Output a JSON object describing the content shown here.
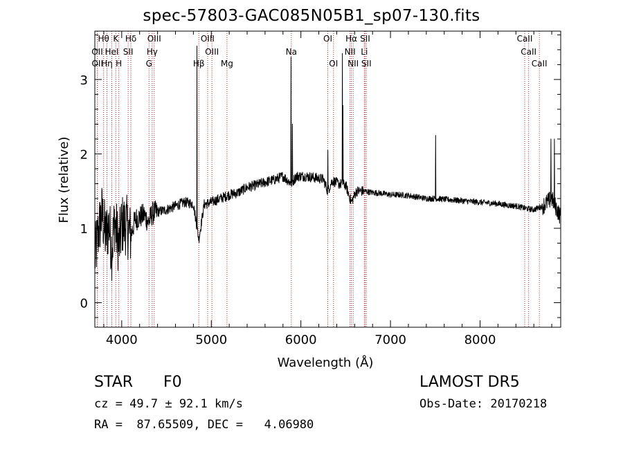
{
  "chart_data": {
    "type": "line",
    "title": "spec-57803-GAC085N05B1_sp07-130.fits",
    "xlabel": "Wavelength (Å)",
    "ylabel": "Flux (relative)",
    "xlim": [
      3700,
      8900
    ],
    "ylim": [
      -0.33,
      3.65
    ],
    "xticks": [
      4000,
      5000,
      6000,
      7000,
      8000
    ],
    "yticks": [
      0,
      1,
      2,
      3
    ],
    "grid": false,
    "line_color": "#000000",
    "marker_color": "#b22222",
    "spectrum_anchors": [
      [
        3700,
        0.6
      ],
      [
        3740,
        0.95
      ],
      [
        3780,
        1.2
      ],
      [
        3820,
        0.9
      ],
      [
        3860,
        1.05
      ],
      [
        3890,
        0.7
      ],
      [
        3920,
        1.1
      ],
      [
        3950,
        0.9
      ],
      [
        3970,
        0.75
      ],
      [
        4000,
        1.05
      ],
      [
        4050,
        1.05
      ],
      [
        4101,
        0.9
      ],
      [
        4150,
        1.12
      ],
      [
        4200,
        1.15
      ],
      [
        4250,
        1.18
      ],
      [
        4300,
        1.08
      ],
      [
        4340,
        1.2
      ],
      [
        4400,
        1.22
      ],
      [
        4500,
        1.25
      ],
      [
        4600,
        1.3
      ],
      [
        4700,
        1.35
      ],
      [
        4800,
        1.33
      ],
      [
        4861,
        0.85
      ],
      [
        4920,
        1.32
      ],
      [
        5000,
        1.35
      ],
      [
        5100,
        1.4
      ],
      [
        5200,
        1.45
      ],
      [
        5300,
        1.48
      ],
      [
        5400,
        1.55
      ],
      [
        5500,
        1.58
      ],
      [
        5600,
        1.62
      ],
      [
        5700,
        1.65
      ],
      [
        5800,
        1.7
      ],
      [
        5893,
        1.6
      ],
      [
        5950,
        1.7
      ],
      [
        6050,
        1.7
      ],
      [
        6150,
        1.68
      ],
      [
        6250,
        1.66
      ],
      [
        6300,
        1.5
      ],
      [
        6350,
        1.64
      ],
      [
        6420,
        1.6
      ],
      [
        6500,
        1.58
      ],
      [
        6563,
        1.35
      ],
      [
        6620,
        1.5
      ],
      [
        6700,
        1.5
      ],
      [
        6800,
        1.48
      ],
      [
        6900,
        1.47
      ],
      [
        7000,
        1.45
      ],
      [
        7100,
        1.45
      ],
      [
        7200,
        1.44
      ],
      [
        7300,
        1.42
      ],
      [
        7400,
        1.4
      ],
      [
        7500,
        1.4
      ],
      [
        7600,
        1.39
      ],
      [
        7700,
        1.38
      ],
      [
        7800,
        1.37
      ],
      [
        7900,
        1.36
      ],
      [
        8000,
        1.35
      ],
      [
        8100,
        1.34
      ],
      [
        8200,
        1.33
      ],
      [
        8300,
        1.31
      ],
      [
        8400,
        1.3
      ],
      [
        8500,
        1.27
      ],
      [
        8600,
        1.25
      ],
      [
        8700,
        1.3
      ],
      [
        8800,
        1.4
      ],
      [
        8900,
        1.15
      ]
    ],
    "emission_spikes": [
      {
        "x": 4840,
        "y": 3.45
      },
      {
        "x": 5890,
        "y": 3.3
      },
      {
        "x": 5905,
        "y": 2.4
      },
      {
        "x": 6300,
        "y": 2.05
      },
      {
        "x": 6463,
        "y": 3.35
      },
      {
        "x": 6470,
        "y": 2.65
      },
      {
        "x": 7505,
        "y": 2.25
      },
      {
        "x": 8790,
        "y": 2.2
      },
      {
        "x": 8830,
        "y": 2.2
      }
    ],
    "line_markers": [
      {
        "label": "Hθ",
        "wave": 3798,
        "row": 0
      },
      {
        "label": "K",
        "wave": 3934,
        "row": 0
      },
      {
        "label": "Hδ",
        "wave": 4102,
        "row": 0
      },
      {
        "label": "OIII",
        "wave": 4363,
        "row": 0
      },
      {
        "label": "OIII",
        "wave": 4959,
        "row": 0
      },
      {
        "label": "OI",
        "wave": 6300,
        "row": 0
      },
      {
        "label": "Hα",
        "wave": 6563,
        "row": 0
      },
      {
        "label": "SII",
        "wave": 6717,
        "row": 0
      },
      {
        "label": "CaII",
        "wave": 8498,
        "row": 0
      },
      {
        "label": "OII",
        "wave": 3727,
        "row": 1
      },
      {
        "label": "HeI",
        "wave": 3889,
        "row": 1
      },
      {
        "label": "SII",
        "wave": 4072,
        "row": 1
      },
      {
        "label": "Hγ",
        "wave": 4340,
        "row": 1
      },
      {
        "label": "OIII",
        "wave": 5007,
        "row": 1
      },
      {
        "label": "Na",
        "wave": 5893,
        "row": 1
      },
      {
        "label": "NII",
        "wave": 6548,
        "row": 1
      },
      {
        "label": "Li",
        "wave": 6708,
        "row": 1
      },
      {
        "label": "CaII",
        "wave": 8542,
        "row": 1
      },
      {
        "label": "OII",
        "wave": 3729,
        "row": 2
      },
      {
        "label": "Hη",
        "wave": 3835,
        "row": 2
      },
      {
        "label": "H",
        "wave": 3968,
        "row": 2
      },
      {
        "label": "G",
        "wave": 4305,
        "row": 2
      },
      {
        "label": "Hβ",
        "wave": 4861,
        "row": 2
      },
      {
        "label": "Mg",
        "wave": 5175,
        "row": 2
      },
      {
        "label": "OI",
        "wave": 6364,
        "row": 2
      },
      {
        "label": "NII",
        "wave": 6583,
        "row": 2
      },
      {
        "label": "SII",
        "wave": 6731,
        "row": 2
      },
      {
        "label": "CaII",
        "wave": 8662,
        "row": 2
      }
    ]
  },
  "info": {
    "object_class": "STAR",
    "subclass": "F0",
    "survey": "LAMOST DR5",
    "velocity": "cz = 49.7 ± 92.1 km/s",
    "obs_date": "Obs-Date: 20170218",
    "coords": "RA =  87.65509, DEC =   4.06980"
  }
}
